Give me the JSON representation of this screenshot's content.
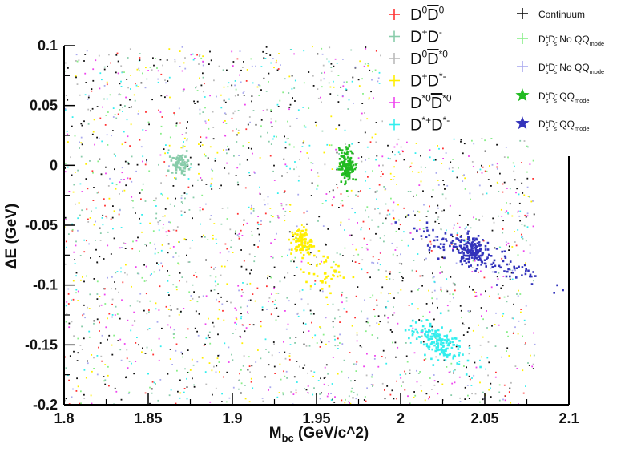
{
  "chart_data": {
    "type": "scatter",
    "title": "",
    "xlabel": "M_bc (GeV/c^2)",
    "ylabel": "ΔE (GeV)",
    "xlim": [
      1.8,
      2.1
    ],
    "ylim": [
      -0.2,
      0.1
    ],
    "xticks": [
      1.8,
      1.85,
      1.9,
      1.95,
      2.0,
      2.05,
      2.1
    ],
    "xtick_labels": [
      "1.8",
      "1.85",
      "1.9",
      "1.95",
      "2",
      "2.05",
      "2.1"
    ],
    "yticks": [
      0.1,
      0.05,
      0.0,
      -0.05,
      -0.1,
      -0.15,
      -0.2
    ],
    "ytick_labels": [
      "0.1",
      "0.05",
      "0",
      "-0.05",
      "-0.1",
      "-0.15",
      "-0.2"
    ],
    "legend_placement": "top-right",
    "grid": false,
    "series": [
      {
        "label": "D0D0bar",
        "color": "#ff3333",
        "marker": "cross",
        "clusters": []
      },
      {
        "label": "D+D-",
        "color": "#88ccaa",
        "marker": "cross",
        "clusters": [
          {
            "cx": 1.869,
            "cy": 0.001,
            "sx": 0.0025,
            "sy": 0.004,
            "n": 70
          }
        ]
      },
      {
        "label": "D0D*0bar",
        "color": "#bbbbbb",
        "marker": "cross",
        "clusters": []
      },
      {
        "label": "D+D*-",
        "color": "#ffee00",
        "marker": "cross",
        "clusters": [
          {
            "cx": 1.941,
            "cy": -0.064,
            "sx": 0.003,
            "sy": 0.006,
            "n": 90
          },
          {
            "cx": 1.955,
            "cy": -0.09,
            "sx": 0.006,
            "sy": 0.008,
            "n": 45
          }
        ]
      },
      {
        "label": "D*0D*0bar",
        "color": "#ee44ee",
        "marker": "cross",
        "clusters": []
      },
      {
        "label": "D*+D*-",
        "color": "#33eeee",
        "marker": "cross",
        "clusters": [
          {
            "cx": 2.021,
            "cy": -0.147,
            "sx": 0.008,
            "sy": 0.007,
            "n": 170,
            "rot": -0.55
          }
        ]
      },
      {
        "label": "Continuum",
        "color": "#111111",
        "marker": "cross",
        "clusters": []
      },
      {
        "label": "DsDs No QQ mode (green)",
        "color": "#88ee88",
        "marker": "cross",
        "clusters": []
      },
      {
        "label": "DsDs No QQ mode (blue)",
        "color": "#aaaaee",
        "marker": "cross",
        "clusters": []
      },
      {
        "label": "DsDs QQ mode (green)",
        "color": "#22bb22",
        "marker": "star",
        "clusters": [
          {
            "cx": 1.968,
            "cy": 0.0,
            "sx": 0.0022,
            "sy": 0.007,
            "n": 150
          }
        ]
      },
      {
        "label": "DsDs QQ mode (blue)",
        "color": "#3333bb",
        "marker": "star",
        "clusters": [
          {
            "cx": 2.042,
            "cy": -0.07,
            "sx": 0.004,
            "sy": 0.006,
            "n": 120
          },
          {
            "cx": 2.045,
            "cy": -0.075,
            "sx": 0.02,
            "sy": 0.006,
            "n": 130,
            "rot": -0.5
          }
        ]
      }
    ],
    "background_noise": {
      "colors": [
        "#111111",
        "#111111",
        "#ee44ee",
        "#33eeee",
        "#ff3333",
        "#bbbbbb",
        "#88ee88",
        "#aaaaee",
        "#ffee00",
        "#88ccaa"
      ],
      "n": 2600
    }
  },
  "legend_left": [
    {
      "color": "#ff3333",
      "parts": [
        [
          "D",
          ""
        ],
        [
          "0",
          "sup"
        ],
        [
          "D",
          "bar"
        ],
        [
          "0",
          "sup"
        ]
      ]
    },
    {
      "color": "#88ccaa",
      "parts": [
        [
          "D",
          ""
        ],
        [
          "+",
          "sup"
        ],
        [
          "D",
          ""
        ],
        [
          "-",
          "sup"
        ]
      ]
    },
    {
      "color": "#bbbbbb",
      "parts": [
        [
          "D",
          ""
        ],
        [
          "0",
          "sup"
        ],
        [
          "D",
          "bar"
        ],
        [
          "*0",
          "sup"
        ]
      ]
    },
    {
      "color": "#ffee00",
      "parts": [
        [
          "D",
          ""
        ],
        [
          "+",
          "sup"
        ],
        [
          "D",
          ""
        ],
        [
          "*-",
          "sup"
        ]
      ]
    },
    {
      "color": "#ee44ee",
      "parts": [
        [
          "D",
          ""
        ],
        [
          "*0",
          "sup"
        ],
        [
          "D",
          "bar"
        ],
        [
          "*0",
          "sup"
        ]
      ]
    },
    {
      "color": "#33eeee",
      "parts": [
        [
          "D",
          ""
        ],
        [
          "*+",
          "sup"
        ],
        [
          "D",
          ""
        ],
        [
          "*-",
          "sup"
        ]
      ]
    }
  ],
  "legend_right": [
    {
      "color": "#111111",
      "marker": "cross",
      "parts": [
        [
          "Continuum",
          ""
        ]
      ]
    },
    {
      "color": "#88ee88",
      "marker": "cross",
      "parts": [
        [
          "D",
          ""
        ],
        [
          "+",
          "supsub"
        ],
        [
          "D",
          ""
        ],
        [
          "-",
          "supsub"
        ],
        [
          " No QQ",
          ""
        ],
        [
          "mode",
          "sub"
        ]
      ]
    },
    {
      "color": "#aaaaee",
      "marker": "cross",
      "parts": [
        [
          "D",
          ""
        ],
        [
          "+",
          "supsub"
        ],
        [
          "D",
          ""
        ],
        [
          "-",
          "supsub"
        ],
        [
          " No QQ",
          ""
        ],
        [
          "mode",
          "sub"
        ]
      ]
    },
    {
      "color": "#22bb22",
      "marker": "star",
      "parts": [
        [
          "D",
          ""
        ],
        [
          "+",
          "supsub"
        ],
        [
          "D",
          ""
        ],
        [
          "-",
          "supsub"
        ],
        [
          " QQ",
          ""
        ],
        [
          "mode",
          "sub"
        ]
      ]
    },
    {
      "color": "#3333bb",
      "marker": "star",
      "parts": [
        [
          "D",
          ""
        ],
        [
          "+",
          "supsub"
        ],
        [
          "D",
          ""
        ],
        [
          "-",
          "supsub"
        ],
        [
          " QQ",
          ""
        ],
        [
          "mode",
          "sub"
        ]
      ]
    }
  ],
  "legend_sub_letter": "s"
}
